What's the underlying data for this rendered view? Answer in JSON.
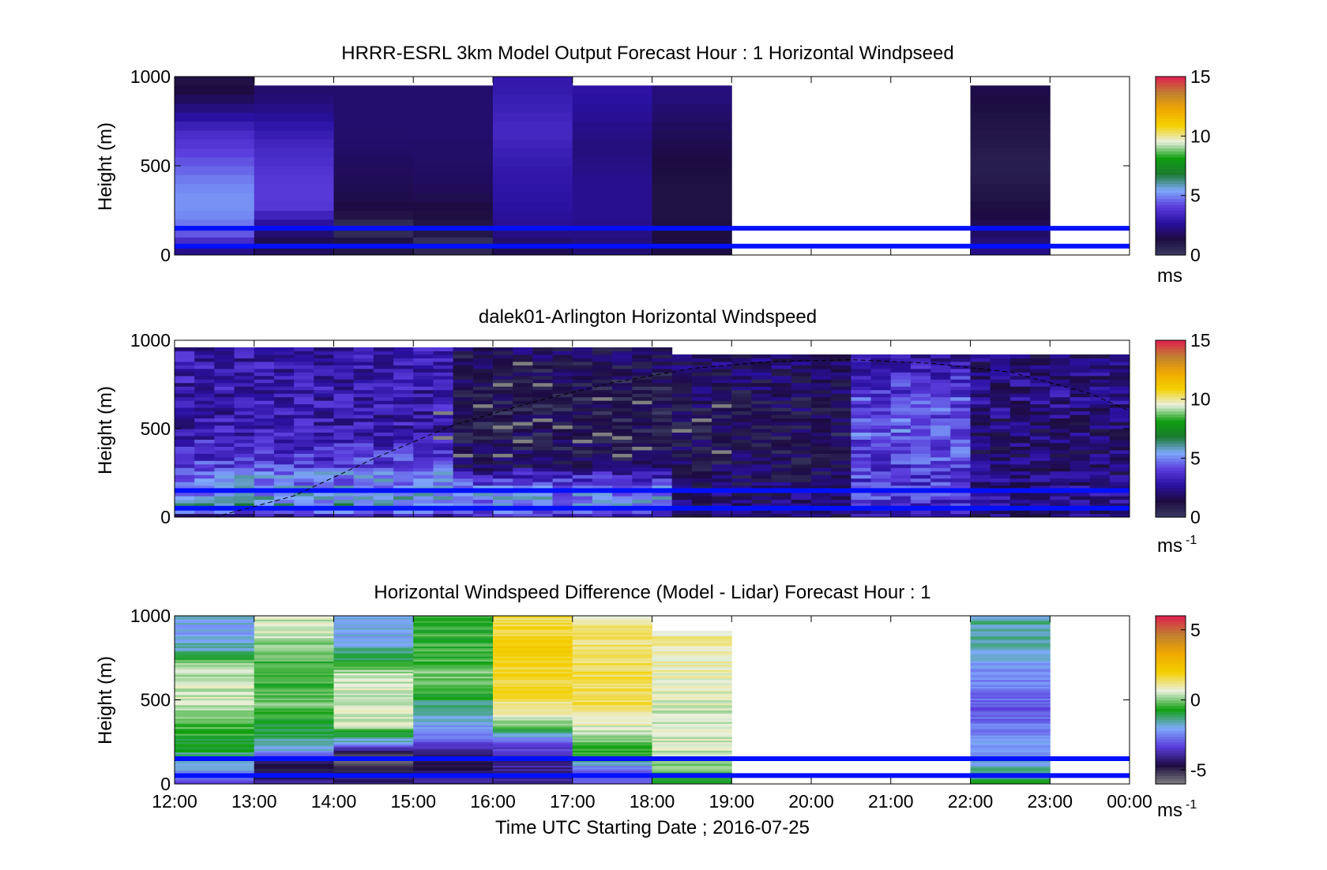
{
  "figure": {
    "xlabel": "Time UTC  Starting Date ; 2016-07-25",
    "time_ticks": [
      "12:00",
      "13:00",
      "14:00",
      "15:00",
      "16:00",
      "17:00",
      "18:00",
      "19:00",
      "20:00",
      "21:00",
      "22:00",
      "23:00",
      "00:00"
    ],
    "y_ticks": [
      "0",
      "500",
      "1000"
    ]
  },
  "colors": {
    "speed_scale": [
      "#3c3c64",
      "#1c0c40",
      "#2a10a0",
      "#5a3cdc",
      "#7faafc",
      "#1a7a30",
      "#10a010",
      "#eaf0e0",
      "#f4d000",
      "#f0a800",
      "#c08030",
      "#e02050"
    ],
    "diff_scale": [
      "#808080",
      "#1c0c40",
      "#5a3cdc",
      "#7faafc",
      "#10a010",
      "#eaf0e0",
      "#f4d000",
      "#f0a800",
      "#c08030",
      "#e02050"
    ],
    "reference_lines": "#0010ff",
    "background": "#ffffff"
  },
  "chart_data": [
    {
      "type": "heatmap",
      "title": "HRRR-ESRL 3km Model Output   Forecast Hour : 1 Horizontal Windpseed",
      "ylabel": "Height (m)",
      "xlim": [
        12,
        24
      ],
      "ylim": [
        0,
        1000
      ],
      "colorbar": {
        "range": [
          0,
          15
        ],
        "ticks": [
          "0",
          "5",
          "10",
          "15"
        ],
        "unit": "ms",
        "unit_sup": ""
      },
      "reference_lines_m": [
        50,
        150
      ],
      "hourly_profiles": [
        {
          "start": 12,
          "end": 13,
          "levels": [
            [
              0,
              1.5
            ],
            [
              40,
              3
            ],
            [
              70,
              3.5
            ],
            [
              130,
              4.5
            ],
            [
              200,
              5
            ],
            [
              300,
              5.2
            ],
            [
              400,
              5
            ],
            [
              500,
              4.5
            ],
            [
              600,
              4
            ],
            [
              700,
              3.5
            ],
            [
              800,
              2.5
            ],
            [
              900,
              1.5
            ],
            [
              950,
              1.2
            ]
          ]
        },
        {
          "start": 13,
          "end": 14,
          "levels": [
            [
              0,
              2
            ],
            [
              60,
              1.5
            ],
            [
              120,
              2
            ],
            [
              200,
              3
            ],
            [
              280,
              4
            ],
            [
              400,
              4
            ],
            [
              600,
              3.5
            ],
            [
              700,
              3
            ],
            [
              800,
              2.5
            ],
            [
              900,
              2
            ]
          ]
        },
        {
          "start": 14,
          "end": 15,
          "levels": [
            [
              0,
              1
            ],
            [
              80,
              1.2
            ],
            [
              160,
              0
            ],
            [
              190,
              1
            ],
            [
              300,
              1.5
            ],
            [
              500,
              1.8
            ],
            [
              700,
              2
            ],
            [
              900,
              2
            ]
          ]
        },
        {
          "start": 15,
          "end": 16,
          "levels": [
            [
              0,
              1
            ],
            [
              60,
              0
            ],
            [
              100,
              1
            ],
            [
              200,
              1.2
            ],
            [
              400,
              1.8
            ],
            [
              700,
              2
            ],
            [
              900,
              2
            ]
          ]
        },
        {
          "start": 16,
          "end": 17,
          "levels": [
            [
              0,
              1.5
            ],
            [
              150,
              2.5
            ],
            [
              300,
              2.8
            ],
            [
              500,
              3
            ],
            [
              700,
              3.5
            ],
            [
              850,
              3.2
            ],
            [
              950,
              3
            ]
          ]
        },
        {
          "start": 17,
          "end": 18,
          "levels": [
            [
              0,
              2
            ],
            [
              200,
              2.5
            ],
            [
              400,
              2.5
            ],
            [
              600,
              2.2
            ],
            [
              750,
              2.5
            ],
            [
              900,
              2.8
            ]
          ]
        },
        {
          "start": 18,
          "end": 19,
          "levels": [
            [
              0,
              1.5
            ],
            [
              200,
              1.2
            ],
            [
              400,
              1.2
            ],
            [
              600,
              1.5
            ],
            [
              800,
              2
            ],
            [
              900,
              2.2
            ]
          ]
        },
        {
          "start": 22,
          "end": 23,
          "levels": [
            [
              0,
              2.5
            ],
            [
              100,
              2
            ],
            [
              200,
              1.5
            ],
            [
              300,
              1.2
            ],
            [
              500,
              0.8
            ],
            [
              600,
              1
            ],
            [
              800,
              1.2
            ],
            [
              900,
              1.5
            ]
          ]
        }
      ]
    },
    {
      "type": "heatmap",
      "title": "dalek01-Arlington  Horizontal Windspeed",
      "ylabel": "Height (m)",
      "xlim": [
        12,
        24
      ],
      "ylim": [
        0,
        1000
      ],
      "colorbar": {
        "range": [
          0,
          15
        ],
        "ticks": [
          "0",
          "5",
          "10",
          "15"
        ],
        "unit": "ms",
        "unit_sup": "-1"
      },
      "reference_lines_m": [
        50,
        150
      ],
      "data_end_hour": 23.85,
      "boundary_curve": [
        [
          12.5,
          0
        ],
        [
          13.5,
          120
        ],
        [
          14.5,
          330
        ],
        [
          15.5,
          520
        ],
        [
          16.5,
          650
        ],
        [
          17.5,
          760
        ],
        [
          18.5,
          840
        ],
        [
          19.5,
          880
        ],
        [
          20.5,
          890
        ],
        [
          21.5,
          870
        ],
        [
          22.5,
          820
        ],
        [
          23.5,
          700
        ],
        [
          24,
          600
        ]
      ],
      "regimes": [
        {
          "from": 12,
          "to": 15.5,
          "description_speed_low": [
            [
              0,
              2
            ],
            [
              50,
              6
            ],
            [
              150,
              5
            ],
            [
              250,
              5
            ],
            [
              300,
              4
            ],
            [
              500,
              3
            ],
            [
              700,
              3
            ],
            [
              900,
              3
            ]
          ]
        },
        {
          "from": 15.5,
          "to": 18.2,
          "description_speed_low": [
            [
              0,
              3
            ],
            [
              50,
              5
            ],
            [
              150,
              5
            ],
            [
              250,
              3
            ],
            [
              300,
              1.5
            ],
            [
              500,
              1
            ],
            [
              700,
              1
            ],
            [
              900,
              1.5
            ]
          ]
        },
        {
          "from": 18.2,
          "to": 20.3,
          "description_speed_low": [
            [
              0,
              2
            ],
            [
              100,
              2
            ],
            [
              300,
              1.5
            ],
            [
              500,
              1.2
            ],
            [
              700,
              1.5
            ],
            [
              900,
              2
            ]
          ]
        },
        {
          "from": 20.3,
          "to": 22,
          "description_speed_low": [
            [
              0,
              2.5
            ],
            [
              100,
              4
            ],
            [
              300,
              4
            ],
            [
              500,
              4.5
            ],
            [
              700,
              4
            ],
            [
              900,
              3
            ]
          ]
        },
        {
          "from": 22,
          "to": 23.85,
          "description_speed_low": [
            [
              0,
              2
            ],
            [
              100,
              2.5
            ],
            [
              300,
              2
            ],
            [
              500,
              2
            ],
            [
              700,
              2.5
            ],
            [
              900,
              2
            ]
          ]
        }
      ]
    },
    {
      "type": "heatmap",
      "title": "Horizontal Windspeed Difference (Model - Lidar) Forecast Hour : 1",
      "ylabel": "Height (m)",
      "xlim": [
        12,
        24
      ],
      "ylim": [
        0,
        1000
      ],
      "colorbar": {
        "range": [
          -6,
          6
        ],
        "ticks": [
          "-5",
          "0",
          "5"
        ],
        "unit": "ms",
        "unit_sup": "-1"
      },
      "reference_lines_m": [
        50,
        150
      ],
      "hourly_profiles": [
        {
          "start": 12,
          "end": 13,
          "levels": [
            [
              0,
              -3
            ],
            [
              100,
              -2
            ],
            [
              200,
              -1
            ],
            [
              300,
              -0.5
            ],
            [
              400,
              0
            ],
            [
              500,
              0.5
            ],
            [
              600,
              0.5
            ],
            [
              700,
              0.3
            ],
            [
              800,
              -1.5
            ],
            [
              900,
              -2
            ],
            [
              1000,
              -2
            ]
          ]
        },
        {
          "start": 13,
          "end": 14,
          "levels": [
            [
              0,
              -4
            ],
            [
              100,
              -5
            ],
            [
              200,
              -2
            ],
            [
              300,
              -1
            ],
            [
              400,
              -0.5
            ],
            [
              500,
              0
            ],
            [
              600,
              -0.5
            ],
            [
              700,
              -0.5
            ],
            [
              800,
              -0.2
            ],
            [
              900,
              0.5
            ],
            [
              1000,
              0.5
            ]
          ]
        },
        {
          "start": 14,
          "end": 15,
          "levels": [
            [
              0,
              -4
            ],
            [
              150,
              -6
            ],
            [
              250,
              -2
            ],
            [
              350,
              0.5
            ],
            [
              500,
              0.5
            ],
            [
              650,
              0.5
            ],
            [
              750,
              -1
            ],
            [
              850,
              -2
            ],
            [
              1000,
              -2
            ]
          ]
        },
        {
          "start": 15,
          "end": 16,
          "levels": [
            [
              0,
              -4
            ],
            [
              150,
              -5
            ],
            [
              250,
              -3
            ],
            [
              350,
              -2
            ],
            [
              450,
              -1.5
            ],
            [
              550,
              -0.5
            ],
            [
              650,
              0
            ],
            [
              750,
              -0.5
            ],
            [
              850,
              -0.5
            ],
            [
              1000,
              -0.5
            ]
          ]
        },
        {
          "start": 16,
          "end": 17,
          "levels": [
            [
              0,
              -4
            ],
            [
              150,
              -4
            ],
            [
              250,
              -3
            ],
            [
              350,
              0
            ],
            [
              500,
              1.5
            ],
            [
              650,
              1.8
            ],
            [
              800,
              2
            ],
            [
              1000,
              1.5
            ]
          ]
        },
        {
          "start": 17,
          "end": 18,
          "levels": [
            [
              0,
              -3
            ],
            [
              80,
              -3
            ],
            [
              150,
              -1
            ],
            [
              300,
              0.5
            ],
            [
              500,
              1.5
            ],
            [
              700,
              1.5
            ],
            [
              900,
              1.2
            ],
            [
              1000,
              1
            ]
          ]
        },
        {
          "start": 18,
          "end": 19,
          "levels": [
            [
              0,
              -1
            ],
            [
              100,
              0
            ],
            [
              200,
              0.5
            ],
            [
              400,
              0.5
            ],
            [
              600,
              0.8
            ],
            [
              800,
              1
            ],
            [
              910,
              1
            ]
          ]
        },
        {
          "start": 22,
          "end": 23,
          "levels": [
            [
              0,
              -1
            ],
            [
              150,
              -2
            ],
            [
              300,
              -2.5
            ],
            [
              450,
              -3
            ],
            [
              600,
              -2.5
            ],
            [
              750,
              -2
            ],
            [
              900,
              -1.5
            ],
            [
              1000,
              -1.5
            ]
          ]
        }
      ]
    }
  ]
}
